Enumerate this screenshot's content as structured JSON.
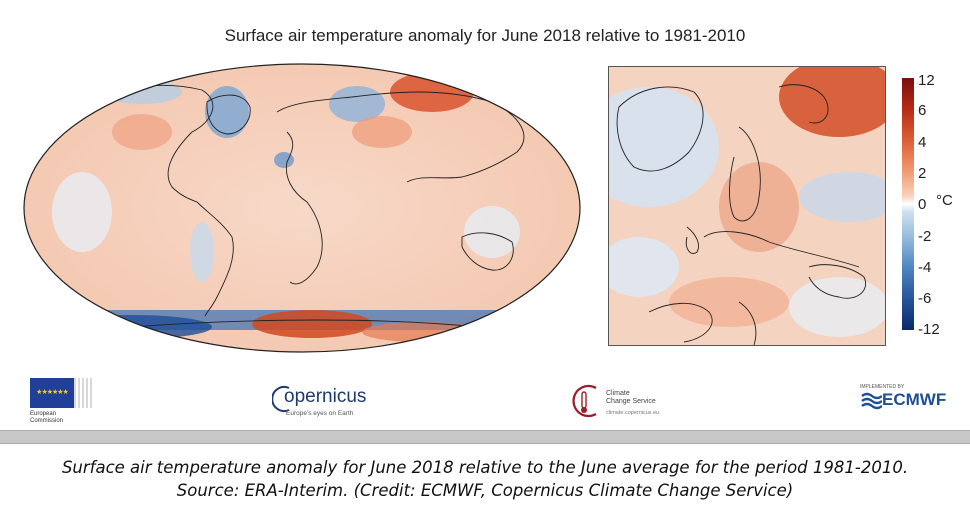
{
  "title": "Surface air temperature anomaly for June 2018 relative to 1981-2010",
  "colorbar": {
    "ticks": [
      "12",
      "6",
      "4",
      "2",
      "0",
      "-2",
      "-4",
      "-6",
      "-12"
    ],
    "unit": "°C",
    "colors": [
      "#7a0f0f",
      "#de5f37",
      "#f9d3bd",
      "#ffffff",
      "#cfe0f0",
      "#4f86c0",
      "#0c2a6b"
    ]
  },
  "logos": {
    "eu": {
      "line1": "European",
      "line2": "Commission"
    },
    "copernicus": {
      "name": "opernicus",
      "tagline": "Europe's eyes on Earth"
    },
    "c3s": {
      "line1": "Climate",
      "line2": "Change Service",
      "url": "climate.copernicus.eu"
    },
    "ecmwf": {
      "top": "IMPLEMENTED BY",
      "name": "ECMWF"
    }
  },
  "caption": {
    "line1": "Surface air temperature anomaly for June 2018 relative to the June average for the period 1981-2010.",
    "line2": "Source: ERA-Interim. (Credit: ECMWF, Copernicus Climate Change Service)"
  }
}
